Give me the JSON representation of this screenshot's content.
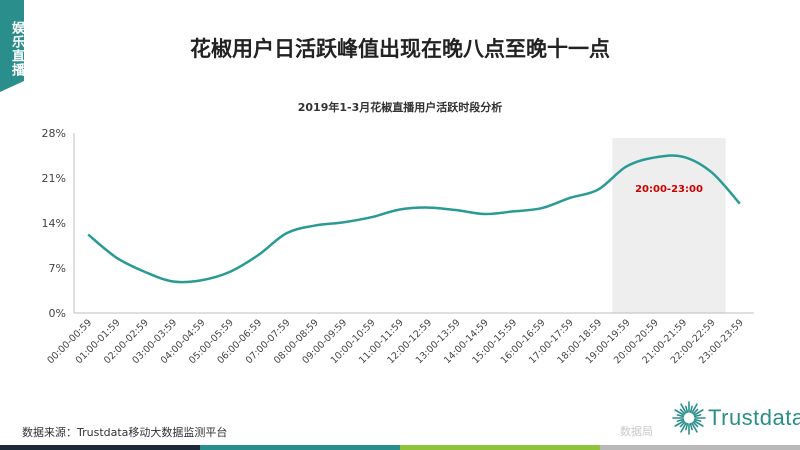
{
  "side_tag": "娱乐直播",
  "main_title": "花椒用户日活跃峰值出现在晚八点至晚十一点",
  "source": "数据来源：Trustdata移动大数据监测平台",
  "brand": "Trustdata",
  "watermark": "数据局",
  "colors": {
    "accent": "#2a8f8c",
    "line": "#2a9a94",
    "highlight_bg": "#eeeeee",
    "annotation": "#cc0000",
    "footer": [
      "#1c2a3a",
      "#2a8f8c",
      "#8fc43a",
      "#b9b9b9"
    ]
  },
  "chart_data": {
    "type": "line",
    "title": "2019年1-3月花椒直播用户活跃时段分析",
    "xlabel": "",
    "ylabel": "",
    "ylim": [
      0,
      28
    ],
    "yticks": [
      "0%",
      "7%",
      "14%",
      "21%",
      "28%"
    ],
    "grid": false,
    "categories": [
      "00:00-00:59",
      "01:00-01:59",
      "02:00-02:59",
      "03:00-03:59",
      "04:00-04:59",
      "05:00-05:59",
      "06:00-06:59",
      "07:00-07:59",
      "08:00-08:59",
      "09:00-09:59",
      "10:00-10:59",
      "11:00-11:59",
      "12:00-12:59",
      "13:00-13:59",
      "14:00-14:59",
      "15:00-15:59",
      "16:00-16:59",
      "17:00-17:59",
      "18:00-18:59",
      "19:00-19:59",
      "20:00-20:59",
      "21:00-21:59",
      "22:00-22:59",
      "23:00-23:59"
    ],
    "series": [
      {
        "values": [
          12.2,
          8.6,
          6.4,
          4.9,
          5.1,
          6.4,
          9.0,
          12.4,
          13.6,
          14.1,
          14.9,
          16.1,
          16.4,
          16.0,
          15.4,
          15.8,
          16.3,
          17.9,
          19.2,
          22.8,
          24.2,
          24.3,
          21.9,
          17.0
        ]
      }
    ],
    "highlight": {
      "from": "19:00-19:59",
      "to": "22:00-22:59",
      "label": "20:00-23:00"
    }
  }
}
